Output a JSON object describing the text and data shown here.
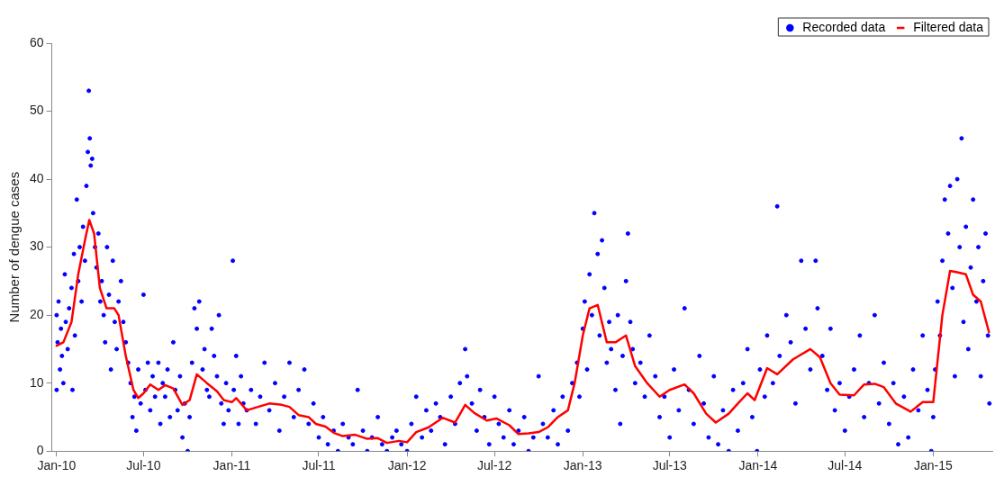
{
  "chart_data": {
    "type": "scatter",
    "ylabel": "Number of dengue cases",
    "xlim": [
      "2009-12-22",
      "2015-05-04"
    ],
    "xticks": [
      {
        "value": "2010-01-01",
        "label": "Jan-10"
      },
      {
        "value": "2010-07-01",
        "label": "Jul-10"
      },
      {
        "value": "2011-01-01",
        "label": "Jan-11"
      },
      {
        "value": "2011-07-01",
        "label": "Jul-11"
      },
      {
        "value": "2012-01-01",
        "label": "Jan-12"
      },
      {
        "value": "2012-07-01",
        "label": "Jul-12"
      },
      {
        "value": "2013-01-01",
        "label": "Jan-13"
      },
      {
        "value": "2013-07-01",
        "label": "Jul-13"
      },
      {
        "value": "2014-01-01",
        "label": "Jan-14"
      },
      {
        "value": "2014-07-01",
        "label": "Jul-14"
      },
      {
        "value": "2015-01-01",
        "label": "Jan-15"
      }
    ],
    "ylim": [
      0,
      60
    ],
    "yticks": [
      0,
      10,
      20,
      30,
      40,
      50,
      60
    ],
    "grid": false,
    "legend": "top right",
    "series": [
      {
        "name": "Recorded data",
        "type": "scatter",
        "marker": "circle",
        "color": "#0000ff",
        "x": [
          "2010-01-01",
          "2010-01-01",
          "2010-01-03",
          "2010-01-05",
          "2010-01-08",
          "2010-01-10",
          "2010-01-12",
          "2010-01-15",
          "2010-01-18",
          "2010-01-20",
          "2010-01-24",
          "2010-01-27",
          "2010-02-01",
          "2010-02-03",
          "2010-02-06",
          "2010-02-08",
          "2010-02-12",
          "2010-02-15",
          "2010-02-18",
          "2010-02-22",
          "2010-02-25",
          "2010-03-01",
          "2010-03-04",
          "2010-03-07",
          "2010-03-09",
          "2010-03-11",
          "2010-03-13",
          "2010-03-16",
          "2010-03-18",
          "2010-03-22",
          "2010-03-25",
          "2010-03-29",
          "2010-04-02",
          "2010-04-05",
          "2010-04-09",
          "2010-04-12",
          "2010-04-16",
          "2010-04-20",
          "2010-04-24",
          "2010-04-28",
          "2010-05-02",
          "2010-05-06",
          "2010-05-10",
          "2010-05-15",
          "2010-05-20",
          "2010-05-25",
          "2010-05-30",
          "2010-06-04",
          "2010-06-08",
          "2010-06-12",
          "2010-06-16",
          "2010-06-20",
          "2010-06-25",
          "2010-07-01",
          "2010-07-05",
          "2010-07-10",
          "2010-07-15",
          "2010-07-20",
          "2010-07-25",
          "2010-08-01",
          "2010-08-05",
          "2010-08-10",
          "2010-08-15",
          "2010-08-20",
          "2010-08-25",
          "2010-09-01",
          "2010-09-05",
          "2010-09-10",
          "2010-09-15",
          "2010-09-20",
          "2010-09-25",
          "2010-10-01",
          "2010-10-05",
          "2010-10-10",
          "2010-10-15",
          "2010-10-20",
          "2010-10-25",
          "2010-11-01",
          "2010-11-05",
          "2010-11-10",
          "2010-11-15",
          "2010-11-20",
          "2010-11-25",
          "2010-12-01",
          "2010-12-05",
          "2010-12-10",
          "2010-12-15",
          "2010-12-20",
          "2010-12-25",
          "2011-01-03",
          "2011-01-05",
          "2011-01-10",
          "2011-01-15",
          "2011-01-20",
          "2011-01-25",
          "2011-02-01",
          "2011-02-10",
          "2011-02-20",
          "2011-03-01",
          "2011-03-10",
          "2011-03-20",
          "2011-04-01",
          "2011-04-10",
          "2011-04-20",
          "2011-05-01",
          "2011-05-10",
          "2011-05-20",
          "2011-06-01",
          "2011-06-10",
          "2011-06-20",
          "2011-07-01",
          "2011-07-10",
          "2011-07-20",
          "2011-08-01",
          "2011-08-10",
          "2011-08-20",
          "2011-09-01",
          "2011-09-10",
          "2011-09-20",
          "2011-10-01",
          "2011-10-10",
          "2011-10-20",
          "2011-11-01",
          "2011-11-10",
          "2011-11-20",
          "2011-12-01",
          "2011-12-10",
          "2011-12-20",
          "2012-01-01",
          "2012-01-10",
          "2012-01-20",
          "2012-02-01",
          "2012-02-10",
          "2012-02-20",
          "2012-03-01",
          "2012-03-10",
          "2012-03-20",
          "2012-04-01",
          "2012-04-10",
          "2012-04-20",
          "2012-05-01",
          "2012-05-05",
          "2012-05-15",
          "2012-05-25",
          "2012-06-01",
          "2012-06-10",
          "2012-06-20",
          "2012-07-01",
          "2012-07-10",
          "2012-07-20",
          "2012-08-01",
          "2012-08-10",
          "2012-08-20",
          "2012-09-01",
          "2012-09-10",
          "2012-09-20",
          "2012-10-01",
          "2012-10-10",
          "2012-10-20",
          "2012-11-01",
          "2012-11-10",
          "2012-11-20",
          "2012-12-01",
          "2012-12-10",
          "2012-12-20",
          "2012-12-25",
          "2013-01-01",
          "2013-01-05",
          "2013-01-10",
          "2013-01-15",
          "2013-01-20",
          "2013-01-25",
          "2013-02-01",
          "2013-02-05",
          "2013-02-10",
          "2013-02-15",
          "2013-02-20",
          "2013-02-25",
          "2013-03-01",
          "2013-03-10",
          "2013-03-15",
          "2013-03-20",
          "2013-03-25",
          "2013-04-01",
          "2013-04-05",
          "2013-04-10",
          "2013-04-15",
          "2013-04-20",
          "2013-05-01",
          "2013-05-10",
          "2013-05-20",
          "2013-06-01",
          "2013-06-10",
          "2013-06-20",
          "2013-07-01",
          "2013-07-10",
          "2013-07-20",
          "2013-08-01",
          "2013-08-10",
          "2013-08-20",
          "2013-09-01",
          "2013-09-10",
          "2013-09-20",
          "2013-10-01",
          "2013-10-10",
          "2013-10-20",
          "2013-11-01",
          "2013-11-10",
          "2013-11-20",
          "2013-12-01",
          "2013-12-10",
          "2013-12-20",
          "2013-12-30",
          "2014-01-05",
          "2014-01-15",
          "2014-01-20",
          "2014-02-01",
          "2014-02-10",
          "2014-02-15",
          "2014-03-01",
          "2014-03-10",
          "2014-03-20",
          "2014-04-01",
          "2014-04-10",
          "2014-04-20",
          "2014-05-01",
          "2014-05-05",
          "2014-05-15",
          "2014-05-25",
          "2014-06-01",
          "2014-06-10",
          "2014-06-20",
          "2014-07-01",
          "2014-07-10",
          "2014-07-20",
          "2014-08-01",
          "2014-08-10",
          "2014-08-20",
          "2014-09-01",
          "2014-09-10",
          "2014-09-20",
          "2014-10-01",
          "2014-10-10",
          "2014-10-20",
          "2014-11-01",
          "2014-11-10",
          "2014-11-20",
          "2014-12-01",
          "2014-12-10",
          "2014-12-20",
          "2014-12-28",
          "2015-01-01",
          "2015-01-05",
          "2015-01-10",
          "2015-01-15",
          "2015-01-20",
          "2015-01-25",
          "2015-02-01",
          "2015-02-05",
          "2015-02-10",
          "2015-02-15",
          "2015-02-20",
          "2015-02-25",
          "2015-03-01",
          "2015-03-05",
          "2015-03-10",
          "2015-03-15",
          "2015-03-20",
          "2015-03-25",
          "2015-04-01",
          "2015-04-05",
          "2015-04-10",
          "2015-04-15",
          "2015-04-20",
          "2015-04-25",
          "2015-04-28"
        ],
        "values": [
          9,
          20,
          16,
          22,
          12,
          18,
          14,
          10,
          26,
          19,
          15,
          21,
          24,
          9,
          29,
          17,
          37,
          25,
          30,
          22,
          33,
          28,
          39,
          44,
          53,
          46,
          42,
          43,
          35,
          30,
          27,
          32,
          22,
          25,
          20,
          16,
          30,
          23,
          12,
          28,
          19,
          15,
          22,
          25,
          19,
          16,
          13,
          10,
          5,
          8,
          3,
          12,
          7,
          23,
          9,
          13,
          6,
          11,
          8,
          13,
          4,
          10,
          8,
          12,
          5,
          16,
          9,
          6,
          11,
          2,
          7,
          0,
          5,
          13,
          21,
          18,
          22,
          12,
          15,
          9,
          8,
          18,
          14,
          11,
          20,
          7,
          4,
          10,
          6,
          28,
          9,
          14,
          4,
          11,
          7,
          6,
          9,
          4,
          8,
          13,
          6,
          10,
          3,
          8,
          13,
          5,
          9,
          12,
          4,
          7,
          2,
          5,
          1,
          3,
          0,
          4,
          2,
          1,
          9,
          3,
          0,
          2,
          5,
          1,
          0,
          2,
          3,
          1,
          0,
          4,
          8,
          2,
          6,
          3,
          7,
          5,
          1,
          8,
          4,
          10,
          15,
          11,
          7,
          3,
          9,
          5,
          1,
          8,
          4,
          2,
          6,
          1,
          3,
          5,
          0,
          2,
          11,
          4,
          2,
          6,
          1,
          8,
          3,
          10,
          13,
          8,
          18,
          22,
          12,
          26,
          20,
          35,
          29,
          17,
          31,
          24,
          13,
          19,
          15,
          9,
          20,
          4,
          14,
          25,
          32,
          19,
          15,
          10,
          13,
          8,
          17,
          11,
          5,
          8,
          2,
          12,
          6,
          21,
          9,
          4,
          14,
          7,
          2,
          11,
          1,
          6,
          0,
          9,
          3,
          10,
          15,
          5,
          0,
          12,
          8,
          17,
          10,
          36,
          14,
          20,
          16,
          7,
          28,
          18,
          12,
          28,
          21,
          14,
          9,
          18,
          6,
          10,
          3,
          8,
          12,
          17,
          5,
          10,
          20,
          7,
          13,
          4,
          10,
          1,
          8,
          2,
          12,
          6,
          17,
          9,
          0,
          5,
          12,
          22,
          17,
          28,
          37,
          32,
          39,
          24,
          11,
          40,
          30,
          46,
          19,
          33,
          15,
          27,
          37,
          22,
          30,
          11,
          25,
          32,
          17,
          7
        ]
      },
      {
        "name": "Filtered data",
        "type": "line",
        "marker": "none",
        "line_style": "solid",
        "color": "#ff0000",
        "x": [
          "2010-01-01",
          "2010-01-15",
          "2010-02-01",
          "2010-02-15",
          "2010-03-01",
          "2010-03-10",
          "2010-03-20",
          "2010-04-01",
          "2010-04-15",
          "2010-05-01",
          "2010-05-10",
          "2010-05-25",
          "2010-06-10",
          "2010-06-20",
          "2010-07-01",
          "2010-07-15",
          "2010-08-01",
          "2010-08-15",
          "2010-09-01",
          "2010-09-20",
          "2010-10-05",
          "2010-10-20",
          "2010-11-10",
          "2010-12-01",
          "2010-12-15",
          "2011-01-01",
          "2011-01-10",
          "2011-02-01",
          "2011-03-01",
          "2011-03-20",
          "2011-04-15",
          "2011-05-01",
          "2011-05-20",
          "2011-06-10",
          "2011-06-25",
          "2011-07-15",
          "2011-08-01",
          "2011-08-20",
          "2011-09-15",
          "2011-10-10",
          "2011-11-01",
          "2011-11-20",
          "2011-12-15",
          "2012-01-01",
          "2012-01-20",
          "2012-02-15",
          "2012-03-15",
          "2012-04-10",
          "2012-05-01",
          "2012-05-20",
          "2012-06-15",
          "2012-07-05",
          "2012-08-01",
          "2012-08-20",
          "2012-09-10",
          "2012-10-01",
          "2012-10-20",
          "2012-11-10",
          "2012-12-01",
          "2012-12-15",
          "2013-01-01",
          "2013-01-15",
          "2013-02-01",
          "2013-02-20",
          "2013-03-10",
          "2013-04-01",
          "2013-04-20",
          "2013-05-15",
          "2013-06-10",
          "2013-07-01",
          "2013-08-01",
          "2013-08-20",
          "2013-09-15",
          "2013-10-05",
          "2013-11-01",
          "2013-11-20",
          "2013-12-10",
          "2013-12-25",
          "2014-01-20",
          "2014-02-10",
          "2014-03-15",
          "2014-04-20",
          "2014-05-10",
          "2014-06-01",
          "2014-06-20",
          "2014-07-20",
          "2014-08-10",
          "2014-09-01",
          "2014-09-20",
          "2014-10-15",
          "2014-11-15",
          "2014-12-10",
          "2015-01-01",
          "2015-01-20",
          "2015-02-05",
          "2015-02-20",
          "2015-03-10",
          "2015-03-25",
          "2015-04-10",
          "2015-04-27"
        ],
        "values": [
          15.5,
          16,
          19,
          26,
          31,
          34,
          32,
          24,
          21,
          21,
          20,
          14,
          9,
          7.8,
          8.5,
          9.8,
          9,
          9.7,
          9.2,
          6.8,
          7.5,
          11.3,
          10,
          8.8,
          7.5,
          7.2,
          7.8,
          6,
          6.6,
          7,
          6.8,
          6.5,
          5.3,
          5,
          4,
          3.6,
          2.7,
          2.2,
          2.4,
          1.8,
          1.9,
          1.2,
          1.5,
          1.3,
          2.8,
          3.5,
          4.9,
          4.2,
          6.8,
          5.6,
          4.5,
          4.8,
          3.8,
          2.5,
          2.6,
          2.8,
          3.5,
          5,
          6,
          10,
          17,
          21,
          21.5,
          16,
          16,
          17,
          12.5,
          10,
          8,
          9,
          9.8,
          8.5,
          5.5,
          4.2,
          5.5,
          7,
          8.5,
          7.5,
          12.2,
          11.3,
          13.5,
          15,
          13.8,
          10,
          8.3,
          8.2,
          9.8,
          9.9,
          9.4,
          7,
          5.8,
          7.2,
          7.2,
          20,
          26.5,
          26.3,
          26,
          23,
          22,
          17.5
        ]
      }
    ]
  }
}
